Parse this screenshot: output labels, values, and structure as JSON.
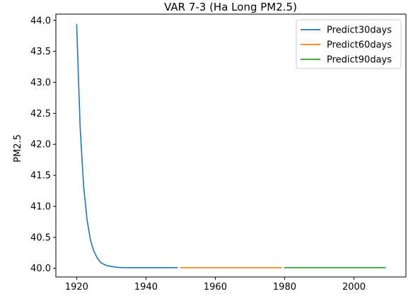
{
  "chart_data": {
    "type": "line",
    "title": "VAR 7-3 (Ha Long PM2.5)",
    "xlabel": "",
    "ylabel": "PM2.5",
    "xlim": [
      1914,
      2015
    ],
    "ylim": [
      39.86,
      44.1
    ],
    "xticks": [
      1920,
      1940,
      1960,
      1980,
      2000
    ],
    "yticks": [
      40.0,
      40.5,
      41.0,
      41.5,
      42.0,
      42.5,
      43.0,
      43.5,
      44.0
    ],
    "grid": false,
    "legend_position": "top-right",
    "series": [
      {
        "name": "Predict30days",
        "color": "#1f77b4",
        "x": [
          1920,
          1921,
          1922,
          1923,
          1924,
          1925,
          1926,
          1927,
          1928,
          1929,
          1930,
          1931,
          1932,
          1933,
          1934,
          1935,
          1936,
          1937,
          1938,
          1939,
          1940,
          1941,
          1942,
          1943,
          1944,
          1945,
          1946,
          1947,
          1948,
          1949
        ],
        "y": [
          43.93,
          42.28,
          41.33,
          40.78,
          40.45,
          40.27,
          40.16,
          40.09,
          40.06,
          40.04,
          40.03,
          40.02,
          40.015,
          40.012,
          40.011,
          40.01,
          40.01,
          40.01,
          40.01,
          40.01,
          40.01,
          40.01,
          40.01,
          40.01,
          40.01,
          40.01,
          40.01,
          40.01,
          40.01,
          40.01
        ]
      },
      {
        "name": "Predict60days",
        "color": "#ff7f0e",
        "x": [
          1950,
          1979
        ],
        "y": [
          40.01,
          40.01
        ]
      },
      {
        "name": "Predict90days",
        "color": "#2ca02c",
        "x": [
          1980,
          2009
        ],
        "y": [
          40.01,
          40.01
        ]
      }
    ]
  }
}
